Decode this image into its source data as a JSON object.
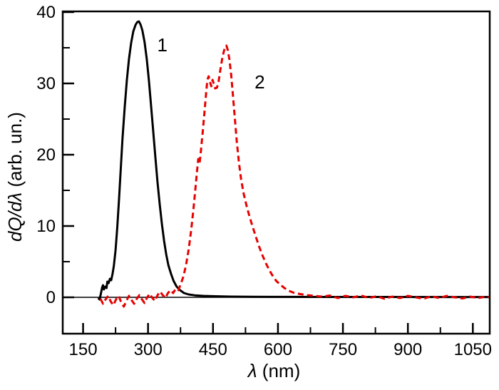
{
  "figure": {
    "background": "#ffffff",
    "frame_color": "#000000"
  },
  "chart_data": {
    "type": "line",
    "title": "",
    "xlabel": "λ (nm)",
    "xlabel_italic": "λ",
    "xlabel_rest": " (nm)",
    "ylabel": "dQ/dλ (arb. un.)",
    "ylabel_italic": "dQ/dλ",
    "ylabel_rest": " (arb. un.)",
    "xlim": [
      103,
      1089
    ],
    "ylim": [
      -5.1,
      40.1
    ],
    "x_major_ticks": [
      150,
      300,
      450,
      600,
      750,
      900,
      1050
    ],
    "x_minor_ticks": [
      225,
      375,
      525,
      675,
      825,
      975
    ],
    "y_major_ticks": [
      0,
      10,
      20,
      30,
      40
    ],
    "y_minor_ticks": [
      5,
      15,
      25,
      35
    ],
    "grid": false,
    "zero_line": true,
    "legend": "inline numeric curve labels",
    "annotations": [
      {
        "text": "1",
        "x": 333,
        "y": 34.5
      },
      {
        "text": "2",
        "x": 558,
        "y": 29.3
      }
    ],
    "series": [
      {
        "name": "1",
        "color": "#000000",
        "style": "solid",
        "line_width": 3,
        "peak": {
          "x": 279,
          "y": 38.7
        },
        "points": [
          [
            185,
            -0.1
          ],
          [
            188,
            -0.3
          ],
          [
            191,
            0.5
          ],
          [
            194,
            1.4
          ],
          [
            196,
            1.7
          ],
          [
            198,
            1.1
          ],
          [
            201,
            1.5
          ],
          [
            204,
            1.3
          ],
          [
            206,
            2.2
          ],
          [
            209,
            2.0
          ],
          [
            212,
            2.6
          ],
          [
            215,
            2.4
          ],
          [
            218,
            3.3
          ],
          [
            221,
            4.4
          ],
          [
            225,
            6.6
          ],
          [
            229,
            9.8
          ],
          [
            233,
            13.8
          ],
          [
            237,
            18.0
          ],
          [
            241,
            22.2
          ],
          [
            246,
            26.6
          ],
          [
            251,
            30.4
          ],
          [
            256,
            33.4
          ],
          [
            261,
            35.7
          ],
          [
            266,
            37.3
          ],
          [
            271,
            38.2
          ],
          [
            275,
            38.6
          ],
          [
            279,
            38.7
          ],
          [
            283,
            38.2
          ],
          [
            287,
            37.4
          ],
          [
            292,
            35.8
          ],
          [
            297,
            33.4
          ],
          [
            302,
            30.4
          ],
          [
            307,
            26.9
          ],
          [
            312,
            23.2
          ],
          [
            317,
            19.6
          ],
          [
            322,
            16.1
          ],
          [
            327,
            13.0
          ],
          [
            332,
            10.3
          ],
          [
            337,
            7.9
          ],
          [
            342,
            6.0
          ],
          [
            347,
            4.5
          ],
          [
            353,
            3.3
          ],
          [
            359,
            2.3
          ],
          [
            366,
            1.5
          ],
          [
            374,
            1.0
          ],
          [
            383,
            0.6
          ],
          [
            394,
            0.4
          ],
          [
            408,
            0.28
          ],
          [
            428,
            0.2
          ],
          [
            455,
            0.15
          ],
          [
            490,
            0.1
          ],
          [
            540,
            0.08
          ],
          [
            620,
            0.06
          ],
          [
            720,
            0.05
          ],
          [
            850,
            0.05
          ],
          [
            1000,
            0.04
          ],
          [
            1087,
            0.04
          ]
        ]
      },
      {
        "name": "2",
        "color": "#e60000",
        "style": "dashed",
        "line_width": 3,
        "peak": {
          "x": 481,
          "y": 35.3
        },
        "shoulder": {
          "x": 440,
          "y": 31.0
        },
        "points": [
          [
            190,
            -0.2
          ],
          [
            196,
            -0.9
          ],
          [
            202,
            -0.3
          ],
          [
            208,
            0.2
          ],
          [
            214,
            -0.6
          ],
          [
            220,
            -1.1
          ],
          [
            226,
            -0.3
          ],
          [
            232,
            0.2
          ],
          [
            238,
            -0.7
          ],
          [
            244,
            -1.3
          ],
          [
            250,
            -0.5
          ],
          [
            256,
            0.2
          ],
          [
            262,
            -0.4
          ],
          [
            268,
            -0.9
          ],
          [
            274,
            -0.2
          ],
          [
            280,
            0.3
          ],
          [
            286,
            -0.3
          ],
          [
            292,
            -0.8
          ],
          [
            298,
            0.0
          ],
          [
            304,
            0.5
          ],
          [
            310,
            -0.1
          ],
          [
            316,
            -0.5
          ],
          [
            322,
            0.3
          ],
          [
            328,
            0.8
          ],
          [
            334,
            0.3
          ],
          [
            340,
            -0.1
          ],
          [
            346,
            0.6
          ],
          [
            352,
            1.0
          ],
          [
            358,
            0.6
          ],
          [
            364,
            1.2
          ],
          [
            370,
            1.0
          ],
          [
            376,
            1.9
          ],
          [
            382,
            3.0
          ],
          [
            388,
            4.6
          ],
          [
            394,
            6.8
          ],
          [
            400,
            9.6
          ],
          [
            405,
            12.5
          ],
          [
            409,
            15.0
          ],
          [
            413,
            17.6
          ],
          [
            416,
            19.4
          ],
          [
            419,
            18.8
          ],
          [
            422,
            20.5
          ],
          [
            426,
            23.0
          ],
          [
            430,
            25.8
          ],
          [
            434,
            28.6
          ],
          [
            437,
            30.5
          ],
          [
            440,
            31.0
          ],
          [
            443,
            30.2
          ],
          [
            446,
            29.6
          ],
          [
            449,
            30.5
          ],
          [
            452,
            29.9
          ],
          [
            455,
            29.3
          ],
          [
            459,
            29.4
          ],
          [
            463,
            30.3
          ],
          [
            467,
            31.9
          ],
          [
            471,
            33.4
          ],
          [
            475,
            34.5
          ],
          [
            478,
            35.1
          ],
          [
            481,
            35.3
          ],
          [
            484,
            34.7
          ],
          [
            488,
            33.3
          ],
          [
            492,
            31.2
          ],
          [
            496,
            28.4
          ],
          [
            500,
            25.4
          ],
          [
            505,
            21.8
          ],
          [
            510,
            18.8
          ],
          [
            515,
            16.5
          ],
          [
            521,
            14.5
          ],
          [
            528,
            12.7
          ],
          [
            535,
            11.2
          ],
          [
            542,
            9.8
          ],
          [
            549,
            8.5
          ],
          [
            556,
            7.2
          ],
          [
            564,
            5.9
          ],
          [
            572,
            4.8
          ],
          [
            580,
            3.8
          ],
          [
            588,
            3.0
          ],
          [
            596,
            2.3
          ],
          [
            605,
            1.8
          ],
          [
            615,
            1.3
          ],
          [
            626,
            0.9
          ],
          [
            638,
            0.6
          ],
          [
            652,
            0.45
          ],
          [
            668,
            0.3
          ],
          [
            685,
            0.2
          ],
          [
            702,
            0.1
          ],
          [
            720,
            0.25
          ],
          [
            738,
            -0.1
          ],
          [
            756,
            0.2
          ],
          [
            774,
            0.0
          ],
          [
            792,
            0.25
          ],
          [
            810,
            -0.1
          ],
          [
            828,
            0.15
          ],
          [
            846,
            -0.2
          ],
          [
            864,
            0.1
          ],
          [
            882,
            -0.1
          ],
          [
            900,
            0.2
          ],
          [
            918,
            0.0
          ],
          [
            936,
            -0.2
          ],
          [
            954,
            0.15
          ],
          [
            972,
            -0.1
          ],
          [
            990,
            0.2
          ],
          [
            1008,
            0.0
          ],
          [
            1026,
            -0.15
          ],
          [
            1044,
            0.1
          ],
          [
            1062,
            -0.1
          ],
          [
            1080,
            0.1
          ],
          [
            1087,
            0.0
          ]
        ]
      }
    ]
  }
}
